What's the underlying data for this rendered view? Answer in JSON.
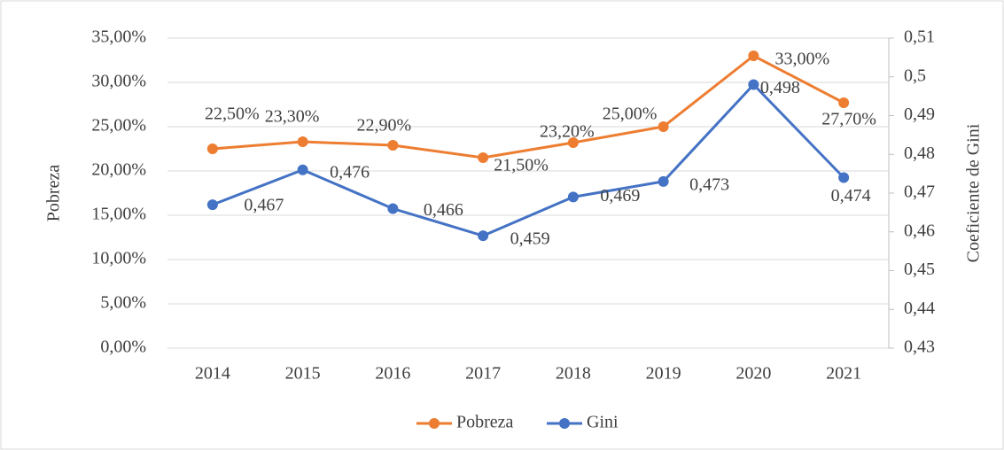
{
  "chart_data": {
    "type": "line",
    "categories": [
      "2014",
      "2015",
      "2016",
      "2017",
      "2018",
      "2019",
      "2020",
      "2021"
    ],
    "y_label": "Pobreza",
    "y2_label": "Coeficiente de Gini",
    "series": [
      {
        "name": "Pobreza",
        "color": "#ed7d31",
        "axis": "y",
        "values": [
          22.5,
          23.3,
          22.9,
          21.5,
          23.2,
          25.0,
          33.0,
          27.7
        ],
        "value_labels": [
          "22,50%",
          "23,30%",
          "22,90%",
          "21,50%",
          "23,20%",
          "25,00%",
          "33,00%",
          "27,70%"
        ]
      },
      {
        "name": "Gini",
        "color": "#4472c4",
        "axis": "y2",
        "values": [
          0.467,
          0.476,
          0.466,
          0.459,
          0.469,
          0.473,
          0.498,
          0.474
        ],
        "value_labels": [
          "0,467",
          "0,476",
          "0,466",
          "0,459",
          "0,469",
          "0,473",
          "0,498",
          "0,474"
        ]
      }
    ],
    "ylim": [
      0,
      35
    ],
    "yticks": [
      {
        "value": 0,
        "label": "0,00%"
      },
      {
        "value": 5,
        "label": "5,00%"
      },
      {
        "value": 10,
        "label": "10,00%"
      },
      {
        "value": 15,
        "label": "15,00%"
      },
      {
        "value": 20,
        "label": "20,00%"
      },
      {
        "value": 25,
        "label": "25,00%"
      },
      {
        "value": 30,
        "label": "30,00%"
      },
      {
        "value": 35,
        "label": "35,00%"
      }
    ],
    "y2lim": [
      0.43,
      0.51
    ],
    "y2ticks": [
      {
        "value": 0.43,
        "label": "0,43"
      },
      {
        "value": 0.44,
        "label": "0,44"
      },
      {
        "value": 0.45,
        "label": "0,45"
      },
      {
        "value": 0.46,
        "label": "0,46"
      },
      {
        "value": 0.47,
        "label": "0,47"
      },
      {
        "value": 0.48,
        "label": "0,48"
      },
      {
        "value": 0.49,
        "label": "0,49"
      },
      {
        "value": 0.5,
        "label": "0,5"
      },
      {
        "value": 0.51,
        "label": "0,51"
      }
    ],
    "grid": true,
    "legend": "bottom"
  }
}
